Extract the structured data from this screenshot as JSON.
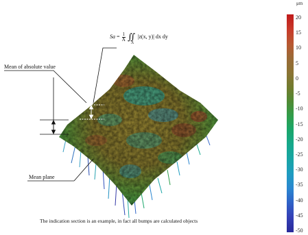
{
  "formula": {
    "lhs": "Sa",
    "eq": "=",
    "frac_num": "1",
    "frac_den": "A",
    "integral": "∬",
    "domain": "A",
    "integrand": "|z(x, y)| dx dy"
  },
  "labels": {
    "mean_abs": "Mean of absolute value",
    "mean_plane": "Mean plane"
  },
  "caption": "The indication section is an example, in fact all bumps are calculated objects",
  "colorbar": {
    "unit": "μm",
    "ticks": [
      "20",
      "15",
      "10",
      "5",
      "0",
      "-5",
      "-10",
      "-15",
      "-20",
      "-25",
      "-30",
      "-35",
      "-40",
      "-45",
      "-50"
    ]
  },
  "colors": {
    "high": "#c01a1a",
    "mid": "#6f7c2e",
    "green": "#2f9e4c",
    "low": "#2a2a9a"
  }
}
